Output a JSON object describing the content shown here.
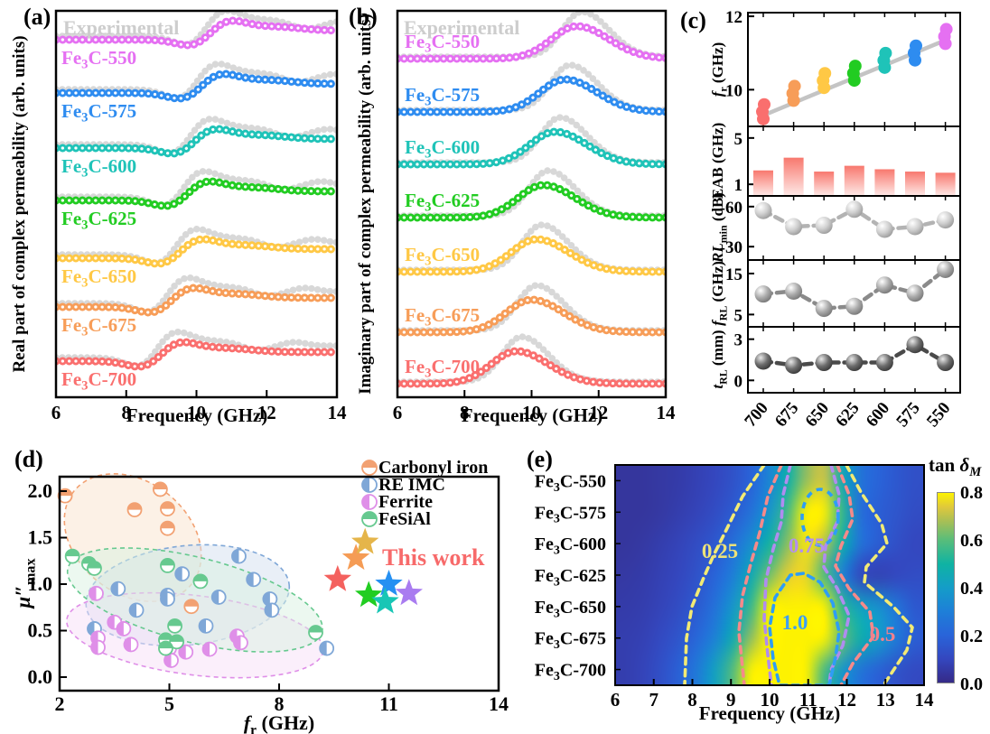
{
  "figure": {
    "background": "#ffffff"
  },
  "chart_data": [
    {
      "id": "a",
      "type": "line",
      "tag": "(a)",
      "xlabel": "Frequency (GHz)",
      "ylabel": "Real part of complex permeability (arb. units)",
      "xlim": [
        6,
        14
      ],
      "xticks": [
        6,
        8,
        10,
        12,
        14
      ],
      "experimental_label": "Experimental",
      "experimental_color": "#d8d8d8",
      "series": [
        {
          "label": {
            "pre": "Fe",
            "sub": "3",
            "post": "C-550"
          },
          "color": "#e570f2",
          "resonance_x0": 10.4
        },
        {
          "label": {
            "pre": "Fe",
            "sub": "3",
            "post": "C-575"
          },
          "color": "#2e8cf0",
          "resonance_x0": 10.15
        },
        {
          "label": {
            "pre": "Fe",
            "sub": "3",
            "post": "C-600"
          },
          "color": "#1fc3b8",
          "resonance_x0": 9.95
        },
        {
          "label": {
            "pre": "Fe",
            "sub": "3",
            "post": "C-625"
          },
          "color": "#22cc22",
          "resonance_x0": 9.75
        },
        {
          "label": {
            "pre": "Fe",
            "sub": "3",
            "post": "C-650"
          },
          "color": "#ffc845",
          "resonance_x0": 9.55
        },
        {
          "label": {
            "pre": "Fe",
            "sub": "3",
            "post": "C-675"
          },
          "color": "#f79d58",
          "resonance_x0": 9.3
        },
        {
          "label": {
            "pre": "Fe",
            "sub": "3",
            "post": "C-700"
          },
          "color": "#fa6f6e",
          "resonance_x0": 9.0
        }
      ]
    },
    {
      "id": "b",
      "type": "line",
      "tag": "(b)",
      "xlabel": "Frequency (GHz)",
      "ylabel": "Imaginary part of complex permeability (arb. units)",
      "xlim": [
        6,
        14
      ],
      "xticks": [
        6,
        8,
        10,
        12,
        14
      ],
      "experimental_label": "Experimental",
      "experimental_color": "#d8d8d8",
      "series": [
        {
          "label": {
            "pre": "Fe",
            "sub": "3",
            "post": "C-550"
          },
          "color": "#e570f2",
          "peak_x0": 11.35
        },
        {
          "label": {
            "pre": "Fe",
            "sub": "3",
            "post": "C-575"
          },
          "color": "#2e8cf0",
          "peak_x0": 11.0
        },
        {
          "label": {
            "pre": "Fe",
            "sub": "3",
            "post": "C-600"
          },
          "color": "#1fc3b8",
          "peak_x0": 10.7
        },
        {
          "label": {
            "pre": "Fe",
            "sub": "3",
            "post": "C-625"
          },
          "color": "#22cc22",
          "peak_x0": 10.35
        },
        {
          "label": {
            "pre": "Fe",
            "sub": "3",
            "post": "C-650"
          },
          "color": "#ffc845",
          "peak_x0": 10.15
        },
        {
          "label": {
            "pre": "Fe",
            "sub": "3",
            "post": "C-675"
          },
          "color": "#f79d58",
          "peak_x0": 10.0
        },
        {
          "label": {
            "pre": "Fe",
            "sub": "3",
            "post": "C-700"
          },
          "color": "#fa6f6e",
          "peak_x0": 9.55
        }
      ]
    },
    {
      "id": "c",
      "type": "multi-panel",
      "tag": "(c)",
      "categories": [
        "700",
        "675",
        "650",
        "625",
        "600",
        "575",
        "550"
      ],
      "category_colors": [
        "#fa6f6e",
        "#f79d58",
        "#ffc845",
        "#22cc22",
        "#1fc3b8",
        "#2e8cf0",
        "#e570f2"
      ],
      "trend_color": "#c4c4c4",
      "subpanels": [
        {
          "ylabel": {
            "it": "f",
            "sub": "r",
            "rest": " (GHz)"
          },
          "type": "scatter",
          "yticks": [
            10,
            12
          ],
          "ylim": [
            9,
            12.1
          ],
          "values": [
            9.4,
            9.9,
            10.25,
            10.45,
            10.8,
            11.0,
            11.45
          ],
          "trendline": true
        },
        {
          "ylabel": {
            "it": "",
            "sub": "",
            "rest": "EAB (GHz)"
          },
          "type": "bar",
          "yticks": [
            1,
            5
          ],
          "ylim": [
            0,
            6
          ],
          "values": [
            2.2,
            3.3,
            2.1,
            2.6,
            2.3,
            2.1,
            2.0
          ],
          "bar_top": "#f8786e",
          "bar_bottom": "#feeae8"
        },
        {
          "ylabel": {
            "it": "RL",
            "sub": "min",
            "rest": " (dB)"
          },
          "type": "sphere-line",
          "yticks": [
            -60,
            -30
          ],
          "ylim": [
            -20,
            -68
          ],
          "values": [
            -57,
            -45,
            -46,
            -58,
            -43,
            -45,
            -50
          ],
          "tone": "light"
        },
        {
          "ylabel": {
            "it": "f",
            "sub": "RL",
            "rest": " (GHz)"
          },
          "type": "sphere-line",
          "yticks": [
            5,
            15
          ],
          "ylim": [
            2,
            18.3
          ],
          "values": [
            10,
            10.7,
            6.5,
            7,
            12.2,
            10.2,
            16
          ],
          "tone": "mid"
        },
        {
          "ylabel": {
            "it": "t",
            "sub": "RL",
            "rest": " (mm)"
          },
          "type": "sphere-line",
          "yticks": [
            0,
            3
          ],
          "ylim": [
            -0.9,
            3.9
          ],
          "values": [
            1.4,
            1.1,
            1.3,
            1.3,
            1.3,
            2.6,
            1.3
          ],
          "tone": "dark"
        }
      ]
    },
    {
      "id": "d",
      "type": "scatter",
      "tag": "(d)",
      "xlabel": {
        "it": "f",
        "sub": "r",
        "rest": " (GHz)"
      },
      "ylabel": {
        "main": "μ″",
        "sub": "max"
      },
      "xlim": [
        2,
        14
      ],
      "xticks": [
        2,
        5,
        8,
        11,
        14
      ],
      "ytick_labels": [
        "0.0",
        "0.5",
        "1.0",
        "1.5",
        "2.0"
      ],
      "yticks": [
        0,
        0.5,
        1.0,
        1.5,
        2.0
      ],
      "groups": [
        {
          "name": "Carbonyl iron",
          "color": "#f2a172",
          "fill": "#fae3cd",
          "half": "top",
          "points": [
            [
              2.15,
              1.95
            ],
            [
              4.75,
              2.02
            ],
            [
              4.05,
              1.8
            ],
            [
              4.95,
              1.81
            ],
            [
              4.95,
              1.6
            ],
            [
              5.6,
              0.76
            ]
          ],
          "ellipse": {
            "cx": 4.0,
            "cy": 1.5,
            "rx": 83,
            "ry": 62,
            "rot": 38
          }
        },
        {
          "name": "RE IMC",
          "color": "#7fa7d7",
          "fill": "#d3e0f0",
          "half": "left",
          "points": [
            [
              2.95,
              0.52
            ],
            [
              3.6,
              0.95
            ],
            [
              4.1,
              0.72
            ],
            [
              4.95,
              0.88
            ],
            [
              4.95,
              0.84
            ],
            [
              5.35,
              1.11
            ],
            [
              6.0,
              0.55
            ],
            [
              6.35,
              0.86
            ],
            [
              6.9,
              1.3
            ],
            [
              7.3,
              1.05
            ],
            [
              7.75,
              0.84
            ],
            [
              7.8,
              0.72
            ],
            [
              9.3,
              0.31
            ]
          ],
          "ellipse": {
            "cx": 5.5,
            "cy": 0.88,
            "rx": 113,
            "ry": 55,
            "rot": -6
          }
        },
        {
          "name": "Ferrite",
          "color": "#df8fe8",
          "fill": "#f7e0f7",
          "half": "left",
          "points": [
            [
              3.0,
              0.9
            ],
            [
              3.5,
              0.59
            ],
            [
              3.75,
              0.52
            ],
            [
              3.05,
              0.42
            ],
            [
              3.05,
              0.32
            ],
            [
              3.95,
              0.35
            ],
            [
              5.0,
              0.31
            ],
            [
              5.05,
              0.18
            ],
            [
              5.45,
              0.27
            ],
            [
              6.1,
              0.3
            ],
            [
              6.85,
              0.44
            ],
            [
              6.95,
              0.37
            ]
          ],
          "ellipse": {
            "cx": 5.7,
            "cy": 0.45,
            "rx": 143,
            "ry": 44,
            "rot": 7
          }
        },
        {
          "name": "FeSiAl",
          "color": "#66c98f",
          "fill": "#d9f2e2",
          "half": "top",
          "points": [
            [
              2.35,
              1.3
            ],
            [
              2.8,
              1.22
            ],
            [
              2.95,
              1.17
            ],
            [
              4.95,
              1.2
            ],
            [
              5.85,
              1.03
            ],
            [
              5.15,
              0.55
            ],
            [
              4.9,
              0.4
            ],
            [
              5.2,
              0.38
            ],
            [
              4.9,
              0.31
            ],
            [
              9.0,
              0.48
            ]
          ],
          "ellipse": {
            "cx": 5.7,
            "cy": 0.83,
            "rx": 145,
            "ry": 47,
            "rot": 14
          }
        }
      ],
      "this_work": {
        "label": "This work",
        "color": "#f76a6a",
        "stars": [
          {
            "x": 9.6,
            "y": 1.05,
            "color": "#f4615e"
          },
          {
            "x": 10.1,
            "y": 1.28,
            "color": "#f59c55"
          },
          {
            "x": 10.35,
            "y": 1.45,
            "color": "#e5b54a"
          },
          {
            "x": 10.45,
            "y": 0.88,
            "color": "#21cd21"
          },
          {
            "x": 11.0,
            "y": 1.0,
            "color": "#2590f2"
          },
          {
            "x": 10.9,
            "y": 0.81,
            "color": "#18c6b5"
          },
          {
            "x": 11.55,
            "y": 0.9,
            "color": "#a97cf0"
          }
        ]
      }
    },
    {
      "id": "e",
      "type": "heatmap",
      "tag": "(e)",
      "xlabel": "Frequency (GHz)",
      "xlim": [
        6,
        14
      ],
      "xticks": [
        6,
        7,
        8,
        9,
        10,
        11,
        12,
        13,
        14
      ],
      "rows": [
        {
          "label": {
            "pre": "Fe",
            "sub": "3",
            "post": "C-550"
          }
        },
        {
          "label": {
            "pre": "Fe",
            "sub": "3",
            "post": "C-575"
          }
        },
        {
          "label": {
            "pre": "Fe",
            "sub": "3",
            "post": "C-600"
          }
        },
        {
          "label": {
            "pre": "Fe",
            "sub": "3",
            "post": "C-625"
          }
        },
        {
          "label": {
            "pre": "Fe",
            "sub": "3",
            "post": "C-650"
          }
        },
        {
          "label": {
            "pre": "Fe",
            "sub": "3",
            "post": "C-675"
          }
        },
        {
          "label": {
            "pre": "Fe",
            "sub": "3",
            "post": "C-700"
          }
        }
      ],
      "x_start": 6,
      "x_step": 0.5,
      "values": [
        [
          0.04,
          0.04,
          0.05,
          0.06,
          0.08,
          0.1,
          0.14,
          0.2,
          0.32,
          0.48,
          0.66,
          0.72,
          0.45,
          0.26,
          0.2,
          0.16,
          0.13
        ],
        [
          0.04,
          0.04,
          0.05,
          0.07,
          0.09,
          0.12,
          0.17,
          0.25,
          0.38,
          0.58,
          0.92,
          1.0,
          0.55,
          0.24,
          0.18,
          0.15,
          0.12
        ],
        [
          0.04,
          0.05,
          0.07,
          0.09,
          0.12,
          0.16,
          0.24,
          0.35,
          0.5,
          0.65,
          0.78,
          0.7,
          0.48,
          0.26,
          0.18,
          0.13,
          0.1
        ],
        [
          0.05,
          0.06,
          0.08,
          0.1,
          0.14,
          0.2,
          0.3,
          0.46,
          0.63,
          0.75,
          0.76,
          0.58,
          0.3,
          0.1,
          0.08,
          0.1,
          0.12
        ],
        [
          0.06,
          0.07,
          0.09,
          0.12,
          0.17,
          0.25,
          0.38,
          0.56,
          0.8,
          0.96,
          1.0,
          0.88,
          0.55,
          0.42,
          0.36,
          0.26,
          0.16
        ],
        [
          0.07,
          0.08,
          0.11,
          0.15,
          0.21,
          0.31,
          0.46,
          0.66,
          0.92,
          1.05,
          1.05,
          0.92,
          0.62,
          0.48,
          0.4,
          0.28,
          0.18
        ],
        [
          0.07,
          0.09,
          0.13,
          0.19,
          0.28,
          0.42,
          0.6,
          0.82,
          1.0,
          1.05,
          0.9,
          0.58,
          0.38,
          0.26,
          0.19,
          0.14,
          0.11
        ]
      ],
      "colorbar": {
        "title_main": "tan ",
        "title_it": "δ",
        "title_sub": "M",
        "ticks": [
          "0.8",
          "0.6",
          "0.4",
          "0.2",
          "0.0"
        ],
        "min": 0,
        "max": 0.8
      },
      "colormap": [
        [
          0,
          "#352a87"
        ],
        [
          0.1,
          "#3447bf"
        ],
        [
          0.2,
          "#2964d9"
        ],
        [
          0.3,
          "#1e7fd8"
        ],
        [
          0.4,
          "#149dc8"
        ],
        [
          0.5,
          "#0fb3a3"
        ],
        [
          0.6,
          "#57bd7b"
        ],
        [
          0.68,
          "#a7bf56"
        ],
        [
          0.74,
          "#dfc83c"
        ],
        [
          0.8,
          "#fdf201"
        ]
      ],
      "contours": [
        {
          "value": "0.25",
          "color": "#f2ea74",
          "label_color": "#ece27a"
        },
        {
          "value": "0.5",
          "color": "#f58a8a",
          "label_color": "#f2808d"
        },
        {
          "value": "0.75",
          "color": "#b08cf0",
          "label_color": "#b490ee"
        },
        {
          "value": "1.0",
          "color": "#2e9df5",
          "label_color": "#3d9ff2"
        }
      ]
    }
  ]
}
